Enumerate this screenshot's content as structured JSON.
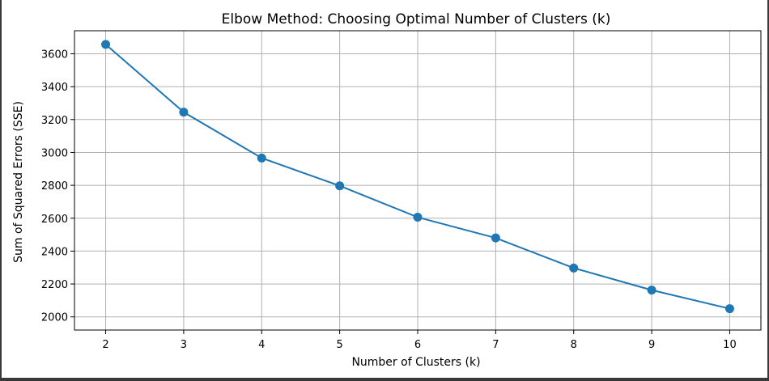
{
  "chart_data": {
    "type": "line",
    "title": "Elbow Method: Choosing Optimal Number of Clusters (k)",
    "xlabel": "Number of Clusters (k)",
    "ylabel": "Sum of Squared Errors (SSE)",
    "x": [
      2,
      3,
      4,
      5,
      6,
      7,
      8,
      9,
      10
    ],
    "series": [
      {
        "values": [
          3657,
          3245,
          2966,
          2797,
          2606,
          2480,
          2297,
          2163,
          2050
        ]
      }
    ],
    "xlim": [
      1.6,
      10.4
    ],
    "ylim": [
      1920,
      3740
    ],
    "xticks": [
      "2",
      "3",
      "4",
      "5",
      "6",
      "7",
      "8",
      "9",
      "10"
    ],
    "yticks": [
      "2000",
      "2200",
      "2400",
      "2600",
      "2800",
      "3000",
      "3200",
      "3400",
      "3600"
    ],
    "marker": "circle",
    "grid": true,
    "line_color": "#1f77b4"
  }
}
